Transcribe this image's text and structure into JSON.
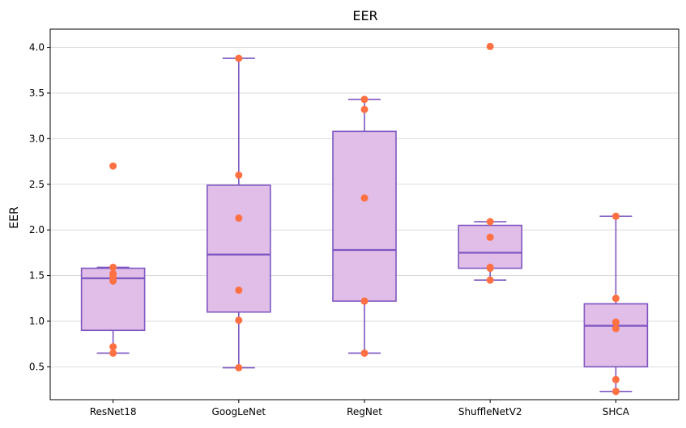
{
  "colors": {
    "box_fill": "#e1bee7",
    "box_stroke": "#7e57c2",
    "point": "#ff7043",
    "grid": "#d3d3d3",
    "axis": "#000000"
  },
  "chart_data": {
    "type": "box",
    "title": "EER",
    "xlabel": "",
    "ylabel": "EER",
    "ylim": [
      0.14,
      4.2
    ],
    "yticks": [
      0.5,
      1.0,
      1.5,
      2.0,
      2.5,
      3.0,
      3.5,
      4.0
    ],
    "ytick_labels": [
      "0.5",
      "1.0",
      "1.5",
      "2.0",
      "2.5",
      "3.0",
      "3.5",
      "4.0"
    ],
    "grid": "y",
    "categories": [
      "ResNet18",
      "GoogLeNet",
      "RegNet",
      "ShuffleNetV2",
      "SHCA"
    ],
    "boxes": [
      {
        "q1": 0.9,
        "median": 1.47,
        "q3": 1.58,
        "whisker_low": 0.65,
        "whisker_high": 1.59,
        "points": [
          2.7,
          1.59,
          1.52,
          1.48,
          1.44,
          0.72,
          0.65
        ]
      },
      {
        "q1": 1.1,
        "median": 1.73,
        "q3": 2.49,
        "whisker_low": 0.49,
        "whisker_high": 3.88,
        "points": [
          3.88,
          2.6,
          2.13,
          1.34,
          1.01,
          0.49
        ]
      },
      {
        "q1": 1.22,
        "median": 1.78,
        "q3": 3.08,
        "whisker_low": 0.65,
        "whisker_high": 3.43,
        "points": [
          3.43,
          3.32,
          2.35,
          1.22,
          0.65
        ]
      },
      {
        "q1": 1.58,
        "median": 1.75,
        "q3": 2.05,
        "whisker_low": 1.45,
        "whisker_high": 2.09,
        "points": [
          4.01,
          2.09,
          1.92,
          1.59,
          1.58,
          1.45
        ]
      },
      {
        "q1": 0.5,
        "median": 0.95,
        "q3": 1.19,
        "whisker_low": 0.23,
        "whisker_high": 2.15,
        "points": [
          2.15,
          1.25,
          0.99,
          0.92,
          0.36,
          0.23
        ]
      }
    ]
  }
}
